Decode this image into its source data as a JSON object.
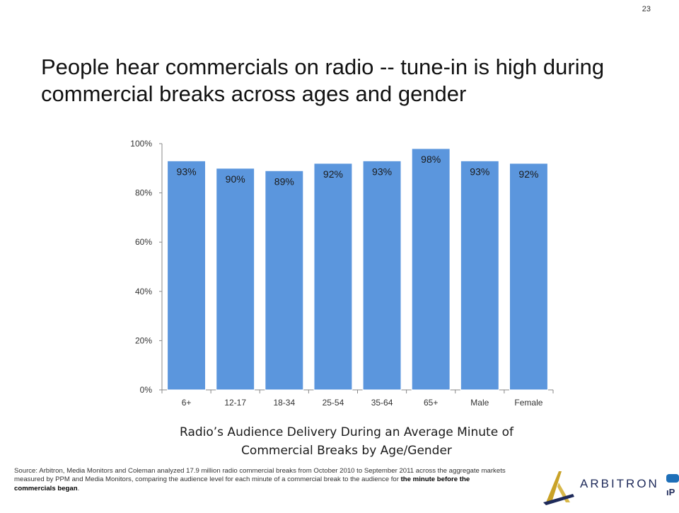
{
  "page_number": "23",
  "title": "People hear commercials on radio -- tune-in is high during commercial breaks across ages and gender",
  "caption": {
    "line1": "Radio’s Audience Delivery During an Average Minute of",
    "line2": "Commercial Breaks by Age/Gender"
  },
  "source": {
    "text": "Source: Arbitron, Media Monitors and Coleman analyzed 17.9 million radio commercial breaks from October 2010 to September 2011 across the aggregate markets measured by PPM and Media Monitors, comparing the audience level for each minute of a commercial break to the audience for ",
    "bold": "the minute before the commercials began",
    "end": "."
  },
  "logo": {
    "name": "ARBITRON",
    "edge_text": "ıP"
  },
  "colors": {
    "bar": "#5b96dd",
    "axis": "#888888",
    "logo_navy": "#1e2a5a",
    "logo_gold": "#c9a227"
  },
  "chart_data": {
    "type": "bar",
    "categories": [
      "6+",
      "12-17",
      "18-34",
      "25-54",
      "35-64",
      "65+",
      "Male",
      "Female"
    ],
    "values": [
      93,
      90,
      89,
      92,
      93,
      98,
      93,
      92
    ],
    "data_labels": [
      "93%",
      "90%",
      "89%",
      "92%",
      "93%",
      "98%",
      "93%",
      "92%"
    ],
    "y_ticks": [
      0,
      20,
      40,
      60,
      80,
      100
    ],
    "y_tick_labels": [
      "0%",
      "20%",
      "40%",
      "60%",
      "80%",
      "100%"
    ],
    "ylim": [
      0,
      100
    ],
    "grid": false,
    "legend": "none"
  }
}
